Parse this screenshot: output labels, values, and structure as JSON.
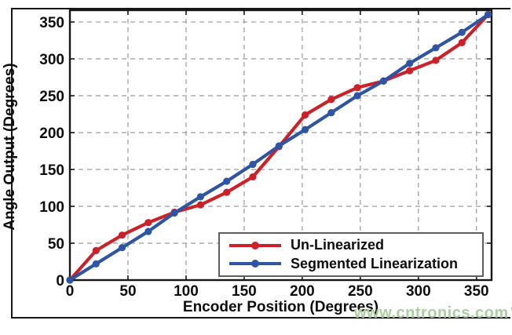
{
  "figure": {
    "background": "#ffffff",
    "frame_color": "#161616",
    "watermark": {
      "text": "www.cntronics.com",
      "color": "#a9cf9e"
    }
  },
  "chart_data": {
    "type": "line",
    "title": "",
    "xlabel": "Encoder Position (Degrees)",
    "ylabel": "Angle Output (Degrees)",
    "xlim": [
      0,
      363
    ],
    "ylim": [
      0,
      366
    ],
    "xticks": [
      0,
      50,
      100,
      150,
      200,
      250,
      300,
      350
    ],
    "yticks": [
      0,
      50,
      100,
      150,
      200,
      250,
      300,
      350
    ],
    "grid": true,
    "grid_color": "#9a9a9a",
    "legend_position": "lower right",
    "x": [
      0,
      22.5,
      45,
      67.5,
      90,
      112.5,
      135,
      157.5,
      180,
      202.5,
      225,
      247.5,
      270,
      292.5,
      315,
      337.5,
      360
    ],
    "series": [
      {
        "name": "Un-Linearized",
        "color": "#cb2128",
        "values": [
          0,
          40,
          61,
          78,
          92,
          102,
          119,
          140,
          181,
          224,
          245,
          261,
          270,
          284,
          298,
          322,
          360
        ]
      },
      {
        "name": "Segmented Linearization",
        "color": "#2e55a3",
        "values": [
          0,
          22,
          44,
          66,
          91,
          113,
          134,
          157,
          182,
          204,
          227,
          250,
          270,
          294,
          315,
          336,
          360
        ]
      }
    ]
  }
}
